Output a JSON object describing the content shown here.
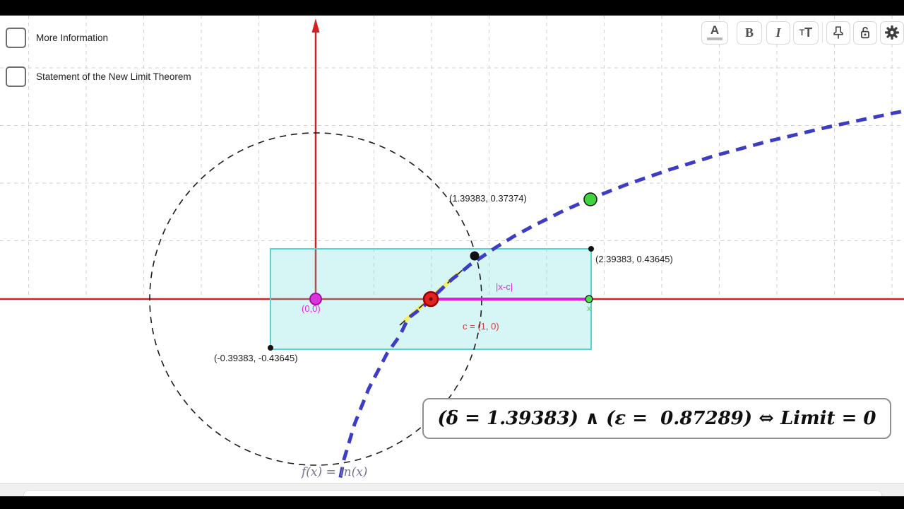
{
  "checkboxes": [
    {
      "label": "More Information",
      "checked": false
    },
    {
      "label": "Statement of the New Limit Theorem",
      "checked": false
    }
  ],
  "toolbar": {
    "color_label": "A",
    "bold_label": "B",
    "italic_label": "I",
    "size_small": "T",
    "size_large": "T",
    "icons": [
      "pin-icon",
      "lock-open-icon",
      "gear-icon"
    ]
  },
  "graph": {
    "labels": {
      "origin": "(0,0)",
      "c_point": "c = (1, 0)",
      "x_point": "x",
      "distance": "|x-c|",
      "curve_point": "(1.39383, 0.37374)",
      "corner_top_right": "(2.39383, 0.43645)",
      "corner_bottom_left": "(-0.39383, -0.43645)",
      "function": "f(x)  =  ln(x)"
    },
    "formula": "(δ = 1.39383) ∧ (ε =  0.87289) ⇔ Limit = 0",
    "values": {
      "delta": 1.39383,
      "epsilon": 0.87289,
      "limit": 0,
      "c": [
        1,
        0
      ],
      "curve_point": [
        1.39383,
        0.37374
      ],
      "rect_corner_top_right": [
        2.39383,
        0.43645
      ],
      "rect_corner_bottom_left": [
        -0.39383,
        -0.43645
      ]
    },
    "colors": {
      "axis": "#d32020",
      "curve": "#3c3cc4",
      "rectangle_stroke": "#5bd3d3",
      "magenta": "#e617e6",
      "highlight": "#f2ef6a",
      "green_point": "#3ed43e",
      "red_point": "#e32222"
    }
  }
}
